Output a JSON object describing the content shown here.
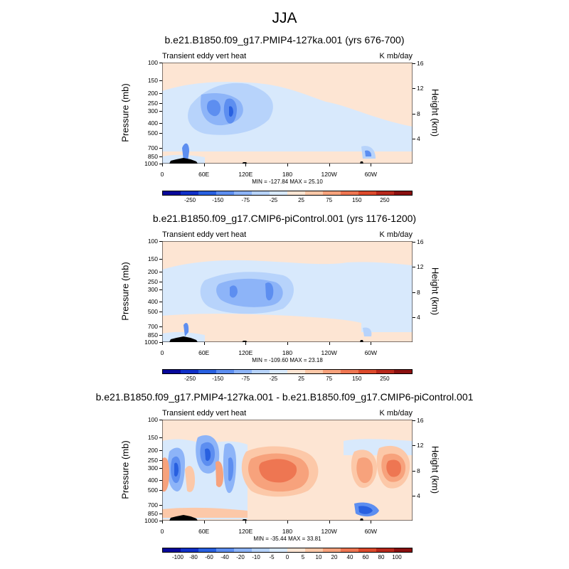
{
  "title": "JJA",
  "panels": [
    {
      "title": "b.e21.B1850.f09_g17.PMIP4-127ka.001 (yrs 676-700)",
      "left_label": "Transient eddy vert heat",
      "right_label": "K mb/day",
      "minmax": "MIN = -127.84  MAX =  25.10",
      "colorbar_ticks": [
        "-250",
        "-150",
        "-75",
        "-25",
        "25",
        "75",
        "150",
        "250"
      ]
    },
    {
      "title": "b.e21.B1850.f09_g17.CMIP6-piControl.001 (yrs 1176-1200)",
      "left_label": "Transient eddy vert heat",
      "right_label": "K mb/day",
      "minmax": "MIN = -109.60  MAX =  23.18",
      "colorbar_ticks": [
        "-250",
        "-150",
        "-75",
        "-25",
        "25",
        "75",
        "150",
        "250"
      ]
    },
    {
      "title": "b.e21.B1850.f09_g17.PMIP4-127ka.001 - b.e21.B1850.f09_g17.CMIP6-piControl.001",
      "left_label": "Transient eddy vert heat",
      "right_label": "K mb/day",
      "minmax": "MIN = -35.44  MAX =  33.81",
      "colorbar_ticks": [
        "-100",
        "-80",
        "-60",
        "-40",
        "-20",
        "-10",
        "-5",
        "0",
        "5",
        "10",
        "20",
        "40",
        "60",
        "80",
        "100"
      ]
    }
  ],
  "axes": {
    "ylabel": "Pressure (mb)",
    "ylabel_right": "Height (km)",
    "pressure_ticks": [
      "100",
      "150",
      "200",
      "250",
      "300",
      "400",
      "500",
      "700",
      "850",
      "1000"
    ],
    "height_ticks": [
      "16",
      "12",
      "8",
      "4"
    ],
    "lon_ticks": [
      "0",
      "60E",
      "120E",
      "180",
      "120W",
      "60W"
    ]
  },
  "colors": {
    "ramp": [
      "#08089a",
      "#1030c8",
      "#2860e0",
      "#5d8ef0",
      "#8db4f8",
      "#b7d3fb",
      "#d8e9fc",
      "#fde5d3",
      "#fcc8a8",
      "#f7a27c",
      "#ee7652",
      "#dc4a2c",
      "#b8281c",
      "#8a1010"
    ]
  },
  "chart_data": [
    {
      "type": "heatmap",
      "title": "b.e21.B1850.f09_g17.PMIP4-127ka.001 (yrs 676-700)",
      "xlabel": "",
      "ylabel": "Pressure (mb)",
      "x_ticks": [
        "0",
        "60E",
        "120E",
        "180",
        "120W",
        "60W"
      ],
      "y_ticks": [
        100,
        150,
        200,
        250,
        300,
        400,
        500,
        700,
        850,
        1000
      ],
      "y_right_label": "Height (km)",
      "y_right_ticks": [
        16,
        12,
        8,
        4
      ],
      "min": -127.84,
      "max": 25.1,
      "contour_levels": [
        -250,
        -150,
        -75,
        -25,
        25,
        75,
        150,
        250
      ],
      "background": 10
    },
    {
      "type": "heatmap",
      "title": "b.e21.B1850.f09_g17.CMIP6-piControl.001 (yrs 1176-1200)",
      "xlabel": "",
      "ylabel": "Pressure (mb)",
      "x_ticks": [
        "0",
        "60E",
        "120E",
        "180",
        "120W",
        "60W"
      ],
      "y_ticks": [
        100,
        150,
        200,
        250,
        300,
        400,
        500,
        700,
        850,
        1000
      ],
      "y_right_label": "Height (km)",
      "y_right_ticks": [
        16,
        12,
        8,
        4
      ],
      "min": -109.6,
      "max": 23.18,
      "contour_levels": [
        -250,
        -150,
        -75,
        -25,
        25,
        75,
        150,
        250
      ],
      "background": 10
    },
    {
      "type": "heatmap",
      "title": "b.e21.B1850.f09_g17.PMIP4-127ka.001 - b.e21.B1850.f09_g17.CMIP6-piControl.001",
      "xlabel": "",
      "ylabel": "Pressure (mb)",
      "x_ticks": [
        "0",
        "60E",
        "120E",
        "180",
        "120W",
        "60W"
      ],
      "y_ticks": [
        100,
        150,
        200,
        250,
        300,
        400,
        500,
        700,
        850,
        1000
      ],
      "y_right_label": "Height (km)",
      "y_right_ticks": [
        16,
        12,
        8,
        4
      ],
      "min": -35.44,
      "max": 33.81,
      "contour_levels": [
        -100,
        -80,
        -60,
        -40,
        -20,
        -10,
        -5,
        0,
        5,
        10,
        20,
        40,
        60,
        80,
        100
      ],
      "background": 2
    }
  ]
}
